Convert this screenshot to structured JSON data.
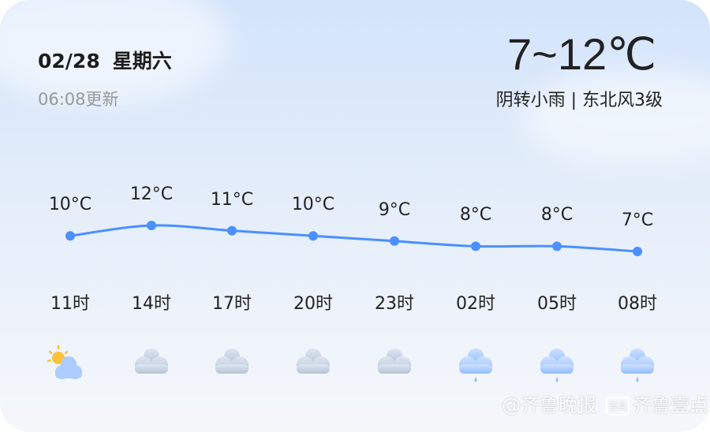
{
  "header": {
    "date": "02/28",
    "weekday": "星期六",
    "updated": "06:08更新",
    "temp_range": "7~12℃",
    "condition": "阴转小雨 | 东北风3级"
  },
  "colors": {
    "line": "#4a90ff",
    "point": "#4a90ff",
    "text": "#222222"
  },
  "hourly": [
    {
      "time": "11时",
      "temp": 10,
      "temp_label": "10°C",
      "icon": "partly-cloudy-sun-icon"
    },
    {
      "time": "14时",
      "temp": 12,
      "temp_label": "12°C",
      "icon": "cloudy-icon"
    },
    {
      "time": "17时",
      "temp": 11,
      "temp_label": "11°C",
      "icon": "cloudy-icon"
    },
    {
      "time": "20时",
      "temp": 10,
      "temp_label": "10°C",
      "icon": "cloudy-icon"
    },
    {
      "time": "23时",
      "temp": 9,
      "temp_label": "9°C",
      "icon": "cloudy-icon"
    },
    {
      "time": "02时",
      "temp": 8,
      "temp_label": "8°C",
      "icon": "light-rain-icon"
    },
    {
      "time": "05时",
      "temp": 8,
      "temp_label": "8°C",
      "icon": "light-rain-icon"
    },
    {
      "time": "08时",
      "temp": 7,
      "temp_label": "7°C",
      "icon": "light-rain-icon"
    }
  ],
  "chart_data": {
    "type": "line",
    "categories": [
      "11时",
      "14时",
      "17时",
      "20时",
      "23时",
      "02时",
      "05时",
      "08时"
    ],
    "values": [
      10,
      12,
      11,
      10,
      9,
      8,
      8,
      7
    ],
    "ylabel": "",
    "xlabel": ""
  },
  "watermark": {
    "brand1": "@齐鲁晚报",
    "badge": "壹点",
    "brand2": "齐鲁壹点"
  }
}
